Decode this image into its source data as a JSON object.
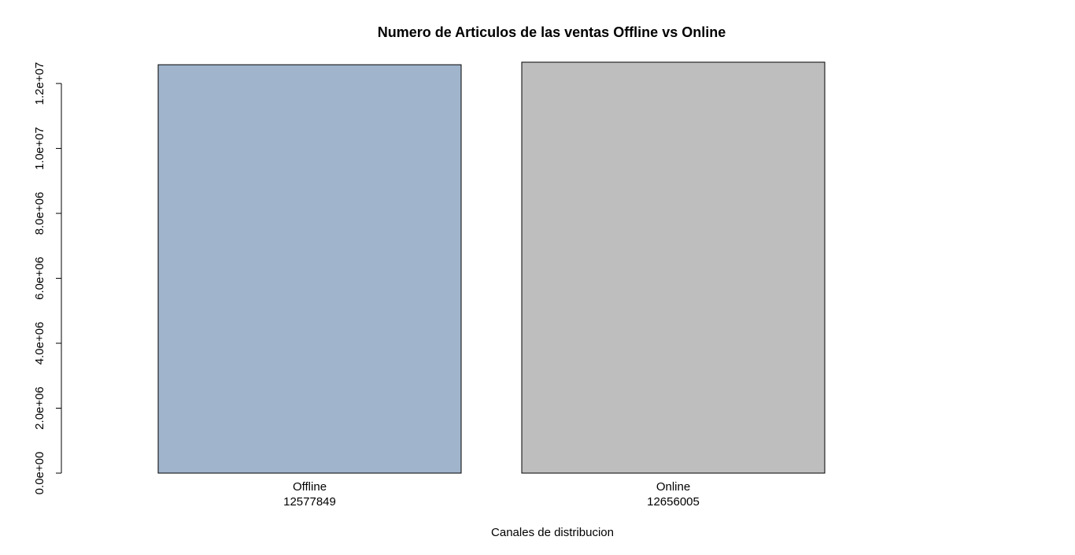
{
  "chart_data": {
    "type": "bar",
    "title": "Numero de Articulos de las ventas Offline vs Online",
    "xlabel": "Canales de distribucion",
    "ylabel": "",
    "categories": [
      "Offline",
      "Online"
    ],
    "value_labels": [
      "12577849",
      "12656005"
    ],
    "values": [
      12577849,
      12656005
    ],
    "colors": [
      "#a0b4cc",
      "#bebebe"
    ],
    "ylim": [
      0,
      12656005
    ],
    "yticks": [
      0,
      2000000,
      4000000,
      6000000,
      8000000,
      10000000,
      12000000
    ],
    "ytick_labels": [
      "0.0e+00",
      "2.0e+06",
      "4.0e+06",
      "6.0e+06",
      "8.0e+06",
      "1.0e+07",
      "1.2e+07"
    ],
    "grid": false,
    "legend": "none"
  }
}
